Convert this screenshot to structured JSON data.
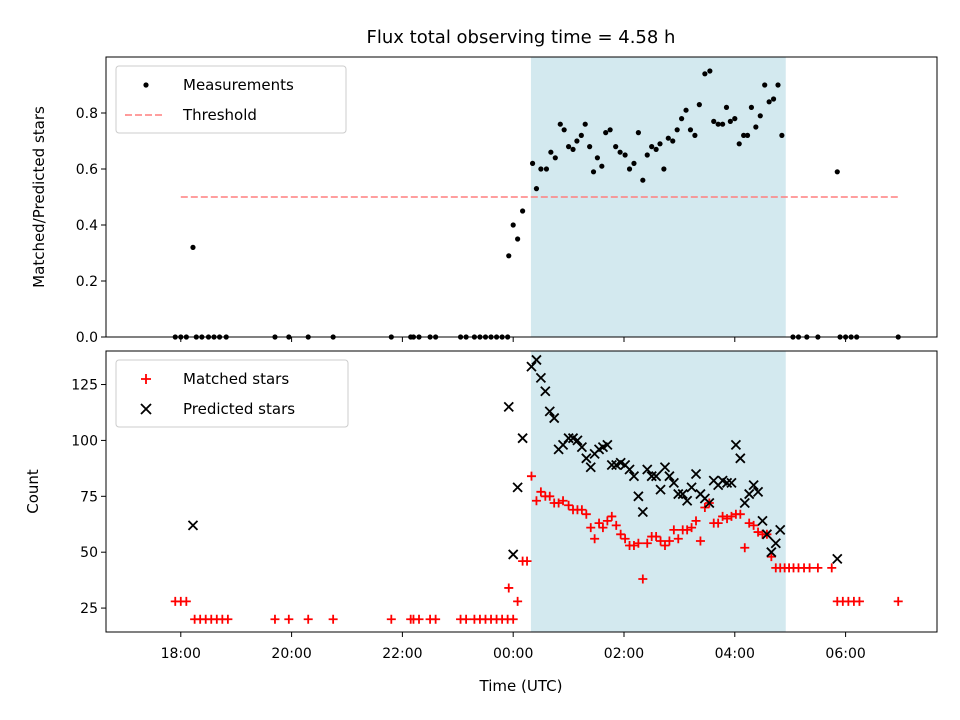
{
  "chart_data": {
    "title": "Flux total observing time = 4.58 h",
    "xlabel": "Time (UTC)",
    "x_unit": "hours relative to 00:00 UTC",
    "xlim": [
      -7.35,
      7.65
    ],
    "x_ticks": [
      {
        "value": -6,
        "label": "18:00"
      },
      {
        "value": -4,
        "label": "20:00"
      },
      {
        "value": -2,
        "label": "22:00"
      },
      {
        "value": 0,
        "label": "00:00"
      },
      {
        "value": 2,
        "label": "02:00"
      },
      {
        "value": 4,
        "label": "04:00"
      },
      {
        "value": 6,
        "label": "06:00"
      }
    ],
    "highlight_span": {
      "x_start": 0.32,
      "x_end": 4.92,
      "color": "#d3e9ef"
    },
    "colors": {
      "measurement": "#000000",
      "threshold": "#ff7f7f",
      "matched": "#ff0000",
      "predicted": "#000000",
      "span": "#d3e9ef"
    },
    "top": {
      "type": "scatter",
      "ylabel": "Matched/Predicted stars",
      "ylim": [
        0,
        1
      ],
      "y_ticks": [
        0.0,
        0.2,
        0.4,
        0.6,
        0.8
      ],
      "y_tick_labels": [
        "0.0",
        "0.2",
        "0.4",
        "0.6",
        "0.8"
      ],
      "legend": {
        "position": "upper left",
        "items": [
          "Measurements",
          "Threshold"
        ]
      },
      "threshold": {
        "y": 0.5,
        "x_start": -6.0,
        "x_end": 6.95,
        "style": "dashed"
      },
      "measurements": [
        [
          -6.1,
          0
        ],
        [
          -6.0,
          0
        ],
        [
          -5.9,
          0
        ],
        [
          -5.78,
          0.32
        ],
        [
          -5.72,
          0
        ],
        [
          -5.62,
          0
        ],
        [
          -5.5,
          0
        ],
        [
          -5.4,
          0
        ],
        [
          -5.3,
          0
        ],
        [
          -5.18,
          0
        ],
        [
          -4.3,
          0
        ],
        [
          -4.05,
          0
        ],
        [
          -3.7,
          0
        ],
        [
          -3.25,
          0
        ],
        [
          -2.2,
          0
        ],
        [
          -1.85,
          0
        ],
        [
          -1.8,
          0
        ],
        [
          -1.7,
          0
        ],
        [
          -1.5,
          0
        ],
        [
          -1.4,
          0
        ],
        [
          -0.95,
          0
        ],
        [
          -0.85,
          0
        ],
        [
          -0.7,
          0
        ],
        [
          -0.6,
          0
        ],
        [
          -0.5,
          0
        ],
        [
          -0.4,
          0
        ],
        [
          -0.3,
          0
        ],
        [
          -0.2,
          0
        ],
        [
          -0.1,
          0
        ],
        [
          -0.08,
          0.29
        ],
        [
          0.0,
          0.4
        ],
        [
          0.08,
          0.35
        ],
        [
          0.17,
          0.45
        ],
        [
          0.35,
          0.62
        ],
        [
          0.42,
          0.53
        ],
        [
          0.5,
          0.6
        ],
        [
          0.6,
          0.6
        ],
        [
          0.68,
          0.66
        ],
        [
          0.76,
          0.64
        ],
        [
          0.85,
          0.76
        ],
        [
          0.92,
          0.74
        ],
        [
          1.0,
          0.68
        ],
        [
          1.08,
          0.67
        ],
        [
          1.15,
          0.7
        ],
        [
          1.23,
          0.72
        ],
        [
          1.3,
          0.76
        ],
        [
          1.38,
          0.68
        ],
        [
          1.45,
          0.59
        ],
        [
          1.52,
          0.64
        ],
        [
          1.6,
          0.61
        ],
        [
          1.67,
          0.73
        ],
        [
          1.75,
          0.74
        ],
        [
          1.85,
          0.68
        ],
        [
          1.93,
          0.66
        ],
        [
          2.02,
          0.65
        ],
        [
          2.1,
          0.6
        ],
        [
          2.18,
          0.62
        ],
        [
          2.26,
          0.73
        ],
        [
          2.34,
          0.56
        ],
        [
          2.42,
          0.65
        ],
        [
          2.5,
          0.68
        ],
        [
          2.58,
          0.67
        ],
        [
          2.65,
          0.69
        ],
        [
          2.72,
          0.6
        ],
        [
          2.8,
          0.71
        ],
        [
          2.88,
          0.7
        ],
        [
          2.96,
          0.74
        ],
        [
          3.04,
          0.78
        ],
        [
          3.12,
          0.81
        ],
        [
          3.2,
          0.74
        ],
        [
          3.28,
          0.72
        ],
        [
          3.36,
          0.83
        ],
        [
          3.46,
          0.94
        ],
        [
          3.55,
          0.95
        ],
        [
          3.62,
          0.77
        ],
        [
          3.7,
          0.76
        ],
        [
          3.78,
          0.76
        ],
        [
          3.85,
          0.82
        ],
        [
          3.92,
          0.77
        ],
        [
          4.0,
          0.78
        ],
        [
          4.08,
          0.69
        ],
        [
          4.16,
          0.72
        ],
        [
          4.23,
          0.72
        ],
        [
          4.3,
          0.82
        ],
        [
          4.38,
          0.75
        ],
        [
          4.46,
          0.79
        ],
        [
          4.54,
          0.9
        ],
        [
          4.62,
          0.84
        ],
        [
          4.7,
          0.85
        ],
        [
          4.78,
          0.9
        ],
        [
          4.85,
          0.72
        ],
        [
          5.05,
          0
        ],
        [
          5.15,
          0
        ],
        [
          5.3,
          0
        ],
        [
          5.5,
          0
        ],
        [
          5.85,
          0.59
        ],
        [
          5.9,
          0
        ],
        [
          6.0,
          0
        ],
        [
          6.1,
          0
        ],
        [
          6.2,
          0
        ],
        [
          6.95,
          0
        ]
      ]
    },
    "bottom": {
      "type": "scatter",
      "ylabel": "Count",
      "ylim": [
        14.3,
        140
      ],
      "y_ticks": [
        25,
        50,
        75,
        100,
        125
      ],
      "y_tick_labels": [
        "25",
        "50",
        "75",
        "100",
        "125"
      ],
      "legend": {
        "position": "upper left",
        "items": [
          "Matched stars",
          "Predicted stars"
        ]
      },
      "matched": [
        [
          -6.1,
          28
        ],
        [
          -6.0,
          28
        ],
        [
          -5.9,
          28
        ],
        [
          -5.75,
          20
        ],
        [
          -5.65,
          20
        ],
        [
          -5.55,
          20
        ],
        [
          -5.45,
          20
        ],
        [
          -5.35,
          20
        ],
        [
          -5.25,
          20
        ],
        [
          -5.15,
          20
        ],
        [
          -4.3,
          20
        ],
        [
          -4.05,
          20
        ],
        [
          -3.7,
          20
        ],
        [
          -3.25,
          20
        ],
        [
          -2.2,
          20
        ],
        [
          -1.85,
          20
        ],
        [
          -1.8,
          20
        ],
        [
          -1.7,
          20
        ],
        [
          -1.5,
          20
        ],
        [
          -1.4,
          20
        ],
        [
          -0.95,
          20
        ],
        [
          -0.85,
          20
        ],
        [
          -0.7,
          20
        ],
        [
          -0.6,
          20
        ],
        [
          -0.5,
          20
        ],
        [
          -0.4,
          20
        ],
        [
          -0.3,
          20
        ],
        [
          -0.2,
          20
        ],
        [
          -0.1,
          20
        ],
        [
          -0.08,
          34
        ],
        [
          0.0,
          20
        ],
        [
          0.08,
          28
        ],
        [
          0.17,
          46
        ],
        [
          0.25,
          46
        ],
        [
          0.33,
          84
        ],
        [
          0.42,
          73
        ],
        [
          0.5,
          77
        ],
        [
          0.58,
          75
        ],
        [
          0.66,
          75
        ],
        [
          0.74,
          72
        ],
        [
          0.82,
          72
        ],
        [
          0.9,
          73
        ],
        [
          1.0,
          71
        ],
        [
          1.08,
          69
        ],
        [
          1.16,
          69
        ],
        [
          1.24,
          69
        ],
        [
          1.32,
          67
        ],
        [
          1.4,
          61
        ],
        [
          1.47,
          56
        ],
        [
          1.55,
          63
        ],
        [
          1.62,
          61
        ],
        [
          1.7,
          64
        ],
        [
          1.78,
          66
        ],
        [
          1.86,
          62
        ],
        [
          1.94,
          58
        ],
        [
          2.02,
          56
        ],
        [
          2.1,
          53
        ],
        [
          2.18,
          53
        ],
        [
          2.26,
          54
        ],
        [
          2.34,
          38
        ],
        [
          2.42,
          54
        ],
        [
          2.5,
          57
        ],
        [
          2.58,
          57
        ],
        [
          2.66,
          55
        ],
        [
          2.74,
          53
        ],
        [
          2.82,
          55
        ],
        [
          2.9,
          60
        ],
        [
          2.98,
          56
        ],
        [
          3.06,
          60
        ],
        [
          3.14,
          60
        ],
        [
          3.22,
          61
        ],
        [
          3.3,
          64
        ],
        [
          3.38,
          55
        ],
        [
          3.46,
          70
        ],
        [
          3.54,
          72
        ],
        [
          3.62,
          63
        ],
        [
          3.7,
          63
        ],
        [
          3.78,
          66
        ],
        [
          3.86,
          65
        ],
        [
          3.94,
          66
        ],
        [
          4.02,
          67
        ],
        [
          4.1,
          67
        ],
        [
          4.18,
          52
        ],
        [
          4.26,
          63
        ],
        [
          4.34,
          62
        ],
        [
          4.42,
          59
        ],
        [
          4.5,
          58
        ],
        [
          4.58,
          58
        ],
        [
          4.66,
          48
        ],
        [
          4.74,
          43
        ],
        [
          4.82,
          43
        ],
        [
          4.9,
          43
        ],
        [
          4.98,
          43
        ],
        [
          5.06,
          43
        ],
        [
          5.15,
          43
        ],
        [
          5.25,
          43
        ],
        [
          5.35,
          43
        ],
        [
          5.5,
          43
        ],
        [
          5.75,
          43
        ],
        [
          5.85,
          28
        ],
        [
          5.95,
          28
        ],
        [
          6.05,
          28
        ],
        [
          6.15,
          28
        ],
        [
          6.25,
          28
        ],
        [
          6.95,
          28
        ]
      ],
      "predicted": [
        [
          -5.78,
          62
        ],
        [
          -0.08,
          115
        ],
        [
          0.0,
          49
        ],
        [
          0.08,
          79
        ],
        [
          0.17,
          101
        ],
        [
          0.33,
          133
        ],
        [
          0.42,
          136
        ],
        [
          0.5,
          128
        ],
        [
          0.58,
          122
        ],
        [
          0.66,
          113
        ],
        [
          0.74,
          110
        ],
        [
          0.82,
          96
        ],
        [
          0.9,
          98
        ],
        [
          1.0,
          101
        ],
        [
          1.08,
          101
        ],
        [
          1.16,
          100
        ],
        [
          1.24,
          97
        ],
        [
          1.32,
          92
        ],
        [
          1.4,
          88
        ],
        [
          1.47,
          94
        ],
        [
          1.55,
          96
        ],
        [
          1.62,
          97
        ],
        [
          1.7,
          98
        ],
        [
          1.78,
          89
        ],
        [
          1.86,
          89
        ],
        [
          1.94,
          90
        ],
        [
          2.02,
          89
        ],
        [
          2.1,
          87
        ],
        [
          2.18,
          84
        ],
        [
          2.26,
          75
        ],
        [
          2.34,
          68
        ],
        [
          2.42,
          87
        ],
        [
          2.5,
          84
        ],
        [
          2.58,
          84
        ],
        [
          2.66,
          78
        ],
        [
          2.74,
          88
        ],
        [
          2.82,
          84
        ],
        [
          2.9,
          81
        ],
        [
          2.98,
          76
        ],
        [
          3.06,
          76
        ],
        [
          3.14,
          73
        ],
        [
          3.22,
          79
        ],
        [
          3.3,
          85
        ],
        [
          3.38,
          76
        ],
        [
          3.46,
          74
        ],
        [
          3.54,
          72
        ],
        [
          3.62,
          82
        ],
        [
          3.7,
          80
        ],
        [
          3.78,
          82
        ],
        [
          3.86,
          81
        ],
        [
          3.94,
          81
        ],
        [
          4.02,
          98
        ],
        [
          4.1,
          92
        ],
        [
          4.18,
          72
        ],
        [
          4.26,
          76
        ],
        [
          4.34,
          80
        ],
        [
          4.42,
          77
        ],
        [
          4.5,
          64
        ],
        [
          4.58,
          58
        ],
        [
          4.66,
          50
        ],
        [
          4.74,
          54
        ],
        [
          4.82,
          60
        ],
        [
          5.85,
          47
        ]
      ]
    }
  }
}
